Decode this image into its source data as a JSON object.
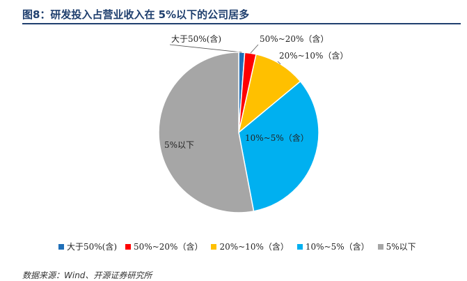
{
  "figure": {
    "title": "图8：研发投入占营业收入在 5%以下的公司居多",
    "source": "数据来源：Wind、开源证券研究所"
  },
  "chart_data": {
    "type": "pie",
    "labels": [
      "大于50%(含)",
      "50%~20%（含）",
      "20%~10%（含）",
      "10%~5%（含）",
      "5%以下"
    ],
    "values": [
      1.2,
      2.3,
      10.5,
      33.0,
      53.0
    ],
    "colors": [
      "#1f6fb8",
      "#ff0000",
      "#ffc000",
      "#00b0f0",
      "#a6a6a6"
    ],
    "legend_position": "bottom",
    "start_angle_deg": 0,
    "direction": "clockwise"
  }
}
